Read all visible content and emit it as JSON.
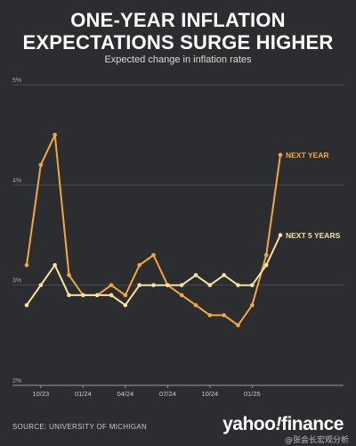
{
  "header": {
    "title_line1": "ONE-YEAR INFLATION",
    "title_line2": "EXPECTATIONS SURGE HIGHER",
    "subtitle": "Expected change in inflation rates"
  },
  "footer": {
    "source": "SOURCE: UNIVERSITY OF MICHIGAN",
    "brand_text": "yahoo",
    "brand_bang": "!",
    "brand_suffix": "finance",
    "watermark": "@张会长宏观分析"
  },
  "chart_data": {
    "type": "line",
    "y_ticks": [
      "5%",
      "4%",
      "3%",
      "2%"
    ],
    "y_tick_values": [
      5,
      4,
      3,
      2
    ],
    "ylim": [
      2,
      5
    ],
    "x_tick_labels": [
      "10/23",
      "01/24",
      "04/24",
      "07/24",
      "10/24",
      "01/25"
    ],
    "x_tick_index": [
      1,
      4,
      7,
      10,
      13,
      16
    ],
    "grid": "horizontal",
    "series": [
      {
        "name": "NEXT YEAR",
        "color": "#f2a93b",
        "values": [
          3.2,
          4.2,
          4.5,
          3.1,
          2.9,
          2.9,
          3.0,
          2.9,
          3.2,
          3.3,
          3.0,
          2.9,
          2.8,
          2.7,
          2.7,
          2.6,
          2.8,
          3.3,
          4.3
        ]
      },
      {
        "name": "NEXT 5 YEARS",
        "color": "#f7e39a",
        "values": [
          2.8,
          3.0,
          3.2,
          2.9,
          2.9,
          2.9,
          2.9,
          2.8,
          3.0,
          3.0,
          3.0,
          3.0,
          3.1,
          3.0,
          3.1,
          3.0,
          3.0,
          3.2,
          3.5
        ]
      }
    ]
  }
}
